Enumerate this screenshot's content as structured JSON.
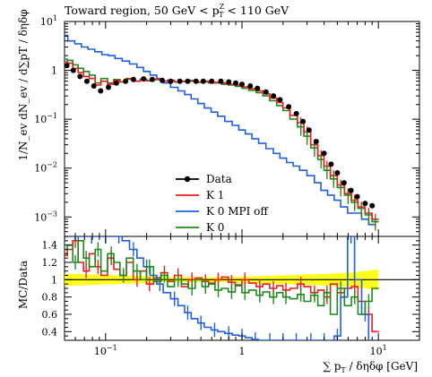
{
  "chart_data": {
    "type": "line",
    "title": "Toward region, 50 GeV < p_T^Z < 110 GeV",
    "title_parts": {
      "prefix": "Toward region, 50 GeV < p",
      "sub": "T",
      "sup": "Z",
      "suffix": " < 110 GeV"
    },
    "xlabel": "∑ pT / δη δφ [GeV]",
    "xlabel_parts": {
      "pre": "∑ p",
      "sub": "T",
      "post": " / δηδφ [GeV]"
    },
    "ylabel_main": "1/N_ev dN_ev / d∑pT / δηδφ",
    "ylabel_ratio": "MC/Data",
    "x_log": true,
    "xlim": [
      0.05,
      20
    ],
    "x_ticks": [
      {
        "v": 0.1,
        "label": "10",
        "exp": "−1"
      },
      {
        "v": 1,
        "label": "1",
        "exp": ""
      },
      {
        "v": 10,
        "label": "10",
        "exp": "1"
      }
    ],
    "y_main_log": true,
    "ylim_main": [
      0.0004,
      10
    ],
    "y_main_ticks": [
      {
        "v": 10,
        "label": "10",
        "exp": "1"
      },
      {
        "v": 1,
        "label": "1",
        "exp": ""
      },
      {
        "v": 0.1,
        "label": "10",
        "exp": "−1"
      },
      {
        "v": 0.01,
        "label": "10",
        "exp": "−2"
      },
      {
        "v": 0.001,
        "label": "10",
        "exp": "−3"
      }
    ],
    "ylim_ratio": [
      0.3,
      1.5
    ],
    "y_ratio_ticks": [
      0.4,
      0.6,
      0.8,
      1,
      1.2,
      1.4
    ],
    "legend_position": "center-left",
    "legend": [
      {
        "name": "Data",
        "color": "#000000",
        "marker": "dot"
      },
      {
        "name": "K 1",
        "color": "#ee1c1c",
        "marker": "line"
      },
      {
        "name": "K 0 MPI off",
        "color": "#1f5fe0",
        "marker": "line"
      },
      {
        "name": "K 0",
        "color": "#1e8a1e",
        "marker": "line"
      }
    ],
    "band_color": "#ffff00",
    "series": [
      {
        "name": "Data",
        "color": "#000000",
        "x": [
          0.052,
          0.058,
          0.065,
          0.073,
          0.082,
          0.092,
          0.105,
          0.12,
          0.14,
          0.16,
          0.19,
          0.22,
          0.26,
          0.3,
          0.35,
          0.4,
          0.46,
          0.52,
          0.6,
          0.7,
          0.8,
          0.9,
          1.0,
          1.15,
          1.3,
          1.5,
          1.7,
          1.9,
          2.2,
          2.5,
          2.8,
          3.1,
          3.5,
          4.0,
          4.5,
          5.0,
          5.6,
          6.3,
          7.0,
          8.0,
          9.0
        ],
        "values": [
          1.25,
          1.0,
          0.75,
          0.6,
          0.48,
          0.38,
          0.45,
          0.55,
          0.6,
          0.65,
          0.67,
          0.65,
          0.62,
          0.6,
          0.6,
          0.6,
          0.6,
          0.6,
          0.6,
          0.6,
          0.58,
          0.55,
          0.52,
          0.48,
          0.43,
          0.36,
          0.3,
          0.25,
          0.18,
          0.13,
          0.09,
          0.06,
          0.035,
          0.02,
          0.012,
          0.008,
          0.005,
          0.0035,
          0.0026,
          0.0019,
          0.0017
        ]
      },
      {
        "name": "K 1",
        "color": "#ee1c1c",
        "x": [
          0.05,
          0.055,
          0.06,
          0.066,
          0.072,
          0.08,
          0.088,
          0.097,
          0.11,
          0.12,
          0.135,
          0.15,
          0.17,
          0.19,
          0.21,
          0.24,
          0.27,
          0.3,
          0.34,
          0.38,
          0.43,
          0.48,
          0.54,
          0.6,
          0.67,
          0.75,
          0.84,
          0.95,
          1.05,
          1.2,
          1.35,
          1.5,
          1.7,
          1.9,
          2.1,
          2.4,
          2.7,
          3.0,
          3.4,
          3.8,
          4.2,
          4.7,
          5.3,
          6.0,
          6.7,
          7.5,
          8.5,
          9.5
        ],
        "values": [
          1.5,
          1.4,
          1.1,
          0.9,
          0.75,
          0.68,
          0.5,
          0.6,
          0.52,
          0.62,
          0.58,
          0.66,
          0.6,
          0.65,
          0.62,
          0.66,
          0.6,
          0.63,
          0.58,
          0.6,
          0.62,
          0.58,
          0.6,
          0.56,
          0.57,
          0.55,
          0.52,
          0.5,
          0.46,
          0.42,
          0.38,
          0.33,
          0.27,
          0.22,
          0.17,
          0.12,
          0.085,
          0.055,
          0.03,
          0.018,
          0.011,
          0.007,
          0.0045,
          0.003,
          0.0022,
          0.0016,
          0.0012,
          0.0009
        ]
      },
      {
        "name": "K 0 MPI off",
        "color": "#1f5fe0",
        "x": [
          0.05,
          0.056,
          0.063,
          0.07,
          0.079,
          0.088,
          0.1,
          0.11,
          0.125,
          0.14,
          0.16,
          0.18,
          0.2,
          0.225,
          0.25,
          0.28,
          0.32,
          0.36,
          0.4,
          0.45,
          0.5,
          0.56,
          0.63,
          0.7,
          0.8,
          0.9,
          1.0,
          1.12,
          1.25,
          1.4,
          1.6,
          1.8,
          2.0,
          2.25,
          2.5,
          2.8,
          3.2,
          3.6,
          4.0,
          4.5,
          5.0,
          5.6,
          6.3,
          7.1,
          8.0,
          9.0
        ],
        "values": [
          5.2,
          4.0,
          3.5,
          3.0,
          2.7,
          2.4,
          2.1,
          2.0,
          1.75,
          1.55,
          1.35,
          1.15,
          0.95,
          0.8,
          0.68,
          0.55,
          0.45,
          0.38,
          0.32,
          0.26,
          0.21,
          0.17,
          0.14,
          0.115,
          0.09,
          0.075,
          0.06,
          0.05,
          0.04,
          0.032,
          0.025,
          0.02,
          0.016,
          0.013,
          0.011,
          0.009,
          0.007,
          0.005,
          0.0035,
          0.0028,
          0.0022,
          0.0016,
          0.0012,
          0.0012,
          0.0009,
          0.0007
        ]
      },
      {
        "name": "K 0",
        "color": "#1e8a1e",
        "x": [
          0.05,
          0.055,
          0.06,
          0.066,
          0.072,
          0.08,
          0.088,
          0.097,
          0.11,
          0.12,
          0.135,
          0.15,
          0.17,
          0.19,
          0.21,
          0.24,
          0.27,
          0.3,
          0.34,
          0.38,
          0.43,
          0.48,
          0.54,
          0.6,
          0.67,
          0.75,
          0.84,
          0.95,
          1.05,
          1.2,
          1.35,
          1.5,
          1.7,
          1.9,
          2.1,
          2.4,
          2.7,
          3.0,
          3.4,
          3.8,
          4.2,
          4.7,
          5.3,
          6.0,
          6.7,
          7.5,
          8.5,
          9.5
        ],
        "values": [
          1.7,
          1.6,
          1.3,
          1.1,
          0.95,
          0.8,
          0.55,
          0.68,
          0.55,
          0.65,
          0.58,
          0.68,
          0.6,
          0.66,
          0.61,
          0.64,
          0.6,
          0.62,
          0.58,
          0.59,
          0.6,
          0.57,
          0.58,
          0.55,
          0.55,
          0.52,
          0.5,
          0.47,
          0.43,
          0.39,
          0.35,
          0.3,
          0.24,
          0.19,
          0.15,
          0.1,
          0.07,
          0.045,
          0.026,
          0.015,
          0.009,
          0.006,
          0.004,
          0.0028,
          0.002,
          0.0015,
          0.0011,
          0.0008
        ]
      }
    ],
    "ratio_series": [
      {
        "name": "K 1",
        "color": "#ee1c1c",
        "x": [
          0.05,
          0.055,
          0.06,
          0.066,
          0.072,
          0.08,
          0.088,
          0.097,
          0.11,
          0.12,
          0.135,
          0.15,
          0.17,
          0.19,
          0.21,
          0.24,
          0.27,
          0.3,
          0.34,
          0.38,
          0.43,
          0.48,
          0.54,
          0.6,
          0.67,
          0.75,
          0.84,
          0.95,
          1.05,
          1.2,
          1.35,
          1.5,
          1.7,
          1.9,
          2.1,
          2.4,
          2.7,
          3.0,
          3.4,
          3.8,
          4.2,
          4.7,
          5.3,
          6.0,
          6.7,
          7.5,
          8.5,
          9.5
        ],
        "values": [
          1.28,
          1.35,
          1.45,
          1.2,
          1.1,
          1.3,
          1.15,
          1.05,
          1.25,
          1.12,
          1.05,
          1.2,
          1.0,
          1.1,
          0.95,
          1.02,
          1.08,
          0.98,
          1.05,
          0.92,
          1.0,
          1.02,
          0.98,
          0.96,
          1.0,
          1.03,
          0.97,
          0.94,
          1.0,
          0.96,
          0.92,
          0.95,
          0.9,
          0.93,
          0.88,
          0.9,
          0.95,
          0.92,
          0.85,
          0.88,
          0.8,
          0.95,
          0.85,
          0.9,
          0.92,
          0.75,
          0.6,
          0.4
        ]
      },
      {
        "name": "K 0 MPI off",
        "color": "#1f5fe0",
        "x": [
          0.05,
          0.056,
          0.063,
          0.07,
          0.079,
          0.088,
          0.1,
          0.11,
          0.125,
          0.14,
          0.16,
          0.18,
          0.2,
          0.225,
          0.25,
          0.28,
          0.32,
          0.36,
          0.4,
          0.45,
          0.5,
          0.56,
          0.63,
          0.7,
          0.8,
          0.9,
          1.0,
          1.12,
          1.25,
          1.4,
          1.6,
          1.8,
          2.0,
          2.25,
          2.5,
          2.8,
          3.2,
          3.6,
          4.0,
          4.5,
          5.0,
          5.6,
          6.3,
          7.1,
          8.0,
          9.0
        ],
        "values": [
          1.5,
          1.5,
          1.5,
          1.5,
          1.5,
          1.5,
          1.5,
          1.5,
          1.5,
          1.45,
          1.35,
          1.25,
          1.15,
          1.05,
          0.95,
          0.85,
          0.78,
          0.7,
          0.62,
          0.55,
          0.5,
          0.45,
          0.42,
          0.4,
          0.38,
          0.36,
          0.35,
          0.33,
          0.31,
          0.3,
          0.3,
          0.3,
          0.3,
          0.3,
          0.3,
          0.3,
          0.3,
          0.3,
          0.3,
          0.3,
          0.35,
          0.8,
          1.5,
          1.0,
          0.6,
          0.3
        ]
      },
      {
        "name": "K 0",
        "color": "#1e8a1e",
        "x": [
          0.05,
          0.055,
          0.06,
          0.066,
          0.072,
          0.08,
          0.088,
          0.097,
          0.11,
          0.12,
          0.135,
          0.15,
          0.17,
          0.19,
          0.21,
          0.24,
          0.27,
          0.3,
          0.34,
          0.38,
          0.43,
          0.48,
          0.54,
          0.6,
          0.67,
          0.75,
          0.84,
          0.95,
          1.05,
          1.2,
          1.35,
          1.5,
          1.7,
          1.9,
          2.1,
          2.4,
          2.7,
          3.0,
          3.4,
          3.8,
          4.2,
          4.7,
          5.3,
          6.0,
          6.7,
          7.5,
          8.5,
          9.5
        ],
        "values": [
          1.35,
          1.4,
          1.2,
          1.45,
          1.25,
          1.15,
          1.35,
          1.1,
          1.3,
          1.2,
          1.05,
          1.25,
          1.1,
          1.0,
          1.15,
          0.98,
          1.05,
          0.92,
          1.0,
          0.95,
          0.9,
          1.0,
          0.92,
          0.95,
          0.88,
          0.9,
          0.86,
          0.93,
          0.85,
          0.88,
          0.82,
          0.86,
          0.8,
          0.85,
          0.8,
          0.78,
          0.83,
          0.75,
          0.82,
          0.7,
          0.85,
          0.6,
          0.9,
          0.7,
          0.8,
          0.6,
          0.75,
          0.9
        ]
      }
    ],
    "band": {
      "x": [
        0.05,
        0.08,
        0.12,
        0.2,
        0.3,
        0.5,
        0.8,
        1.2,
        2.0,
        3.0,
        4.5,
        6.0,
        8.0,
        10.0
      ],
      "lo": [
        0.93,
        0.94,
        0.95,
        0.96,
        0.97,
        0.97,
        0.97,
        0.96,
        0.95,
        0.94,
        0.93,
        0.92,
        0.9,
        0.88
      ],
      "hi": [
        1.07,
        1.06,
        1.05,
        1.04,
        1.03,
        1.03,
        1.03,
        1.04,
        1.05,
        1.06,
        1.07,
        1.08,
        1.1,
        1.12
      ]
    }
  }
}
